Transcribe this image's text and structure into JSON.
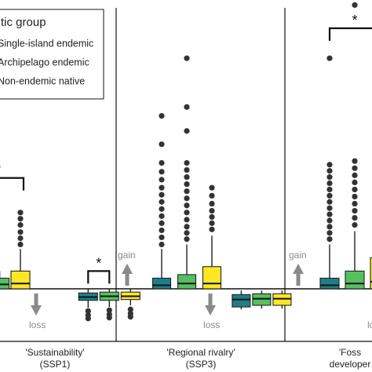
{
  "chart_data": {
    "type": "box",
    "title": "",
    "xlabel": "",
    "ylabel": "",
    "ylim": [
      -5.0,
      30.0
    ],
    "legend": {
      "title": "tic group",
      "placement": "top-left",
      "entries": [
        {
          "label": "Single-island endemic",
          "color": "#1f7f86"
        },
        {
          "label": "Archipelago endemic",
          "color": "#55c060"
        },
        {
          "label": "Non-endemic native",
          "color": "#fde725"
        }
      ]
    },
    "gain_label": "gain",
    "loss_label": "loss",
    "gain_loss_color": "#8a8a8a",
    "panels": [
      {
        "label_line1": "'Sustainability'",
        "label_line2": "(SSP1)",
        "gain_groups": [
          {
            "pos": 0.12,
            "color": "#55c060",
            "q1": 0.0,
            "median": 0.5,
            "q3": 1.2,
            "whisker_low": 0.0,
            "whisker_high": 2.0,
            "outliers": []
          },
          {
            "pos": 0.45,
            "color": "#fde725",
            "q1": 0.0,
            "median": 0.6,
            "q3": 2.0,
            "whisker_low": 0.0,
            "whisker_high": 4.5,
            "outliers": [
              5.0,
              5.7,
              6.4,
              7.2,
              7.9,
              8.6
            ]
          }
        ],
        "loss_groups": [
          {
            "pos": 1.45,
            "color": "#1f7f86",
            "q1": -1.4,
            "median": -1.0,
            "q3": -0.5,
            "whisker_low": -2.3,
            "whisker_high": 0.0,
            "outliers": [
              -2.7,
              -3.2,
              -3.6
            ]
          },
          {
            "pos": 1.95,
            "color": "#55c060",
            "q1": -1.4,
            "median": -0.9,
            "q3": -0.4,
            "whisker_low": -2.2,
            "whisker_high": 0.0,
            "outliers": [
              -2.6,
              -3.1,
              -3.5
            ]
          },
          {
            "pos": 2.45,
            "color": "#fde725",
            "q1": -1.3,
            "median": -0.9,
            "q3": -0.4,
            "whisker_low": -2.0,
            "whisker_high": 0.0,
            "outliers": [
              -2.5,
              -3.0,
              -3.4
            ]
          }
        ],
        "significance": [
          {
            "label": "**",
            "from": -0.4,
            "to": 0.5,
            "y": 12.5
          },
          {
            "label": "*",
            "from": 1.45,
            "to": 1.95,
            "y": 2.0
          }
        ]
      },
      {
        "label_line1": "'Regional rivalry'",
        "label_line2": "(SSP3)",
        "gain_groups": [
          {
            "pos": 0.5,
            "color": "#1f7f86",
            "q1": 0.0,
            "median": 0.4,
            "q3": 1.2,
            "whisker_low": 0.0,
            "whisker_high": 4.5,
            "outliers": [
              5.0,
              5.8,
              6.6,
              7.4,
              8.2,
              9.0,
              9.8,
              10.6,
              11.4,
              12.3,
              13.2,
              14.2,
              16.3,
              19.5
            ]
          },
          {
            "pos": 1.0,
            "color": "#55c060",
            "q1": 0.0,
            "median": 0.6,
            "q3": 1.6,
            "whisker_low": 0.0,
            "whisker_high": 5.0,
            "outliers": [
              5.6,
              6.3,
              7.0,
              7.8,
              8.6,
              9.4,
              10.2,
              11.0,
              11.8,
              12.6,
              13.4,
              14.2,
              17.8,
              20.5,
              26.0
            ]
          },
          {
            "pos": 1.5,
            "color": "#fde725",
            "q1": 0.0,
            "median": 0.6,
            "q3": 2.5,
            "whisker_low": 0.0,
            "whisker_high": 6.0,
            "outliers": [
              6.7,
              7.4,
              8.1,
              8.8,
              9.6,
              10.5,
              11.4
            ]
          }
        ],
        "loss_groups": [
          {
            "pos": 1.45,
            "color": "#1f7f86",
            "q1": -2.2,
            "median": -1.3,
            "q3": -0.7,
            "whisker_low": -2.5,
            "whisker_high": -0.2,
            "outliers": []
          },
          {
            "pos": 1.95,
            "color": "#55c060",
            "q1": -2.0,
            "median": -1.2,
            "q3": -0.6,
            "whisker_low": -2.4,
            "whisker_high": -0.2,
            "outliers": []
          },
          {
            "pos": 2.45,
            "color": "#fde725",
            "q1": -2.0,
            "median": -1.2,
            "q3": -0.6,
            "whisker_low": -2.4,
            "whisker_high": -0.2,
            "outliers": []
          }
        ],
        "significance": []
      },
      {
        "label_line1": "'Foss",
        "label_line2": "developer",
        "gain_groups": [
          {
            "pos": 0.5,
            "color": "#1f7f86",
            "q1": 0.0,
            "median": 0.4,
            "q3": 1.2,
            "whisker_low": 0.0,
            "whisker_high": 5.0,
            "outliers": [
              5.6,
              6.3,
              7.0,
              7.7,
              8.4,
              9.1,
              9.8,
              10.5,
              11.2,
              11.9,
              12.6,
              13.3,
              14.0,
              26.0
            ]
          },
          {
            "pos": 1.0,
            "color": "#55c060",
            "q1": 0.0,
            "median": 0.6,
            "q3": 2.0,
            "whisker_low": 0.0,
            "whisker_high": 6.5,
            "outliers": [
              7.2,
              8.0,
              8.8,
              9.6,
              10.4,
              11.2,
              12.0,
              12.8,
              13.6,
              14.4,
              32.0
            ]
          },
          {
            "pos": 1.5,
            "color": "#fde725",
            "q1": 0.0,
            "median": 0.8,
            "q3": 3.5,
            "whisker_low": 0.0,
            "whisker_high": 10.5,
            "outliers": [
              11.2,
              12.0,
              12.9,
              13.8,
              15.5
            ]
          }
        ],
        "loss_groups": [],
        "significance": [
          {
            "label": "*",
            "from": 0.5,
            "to": 1.5,
            "y": 33.5
          }
        ]
      }
    ]
  }
}
